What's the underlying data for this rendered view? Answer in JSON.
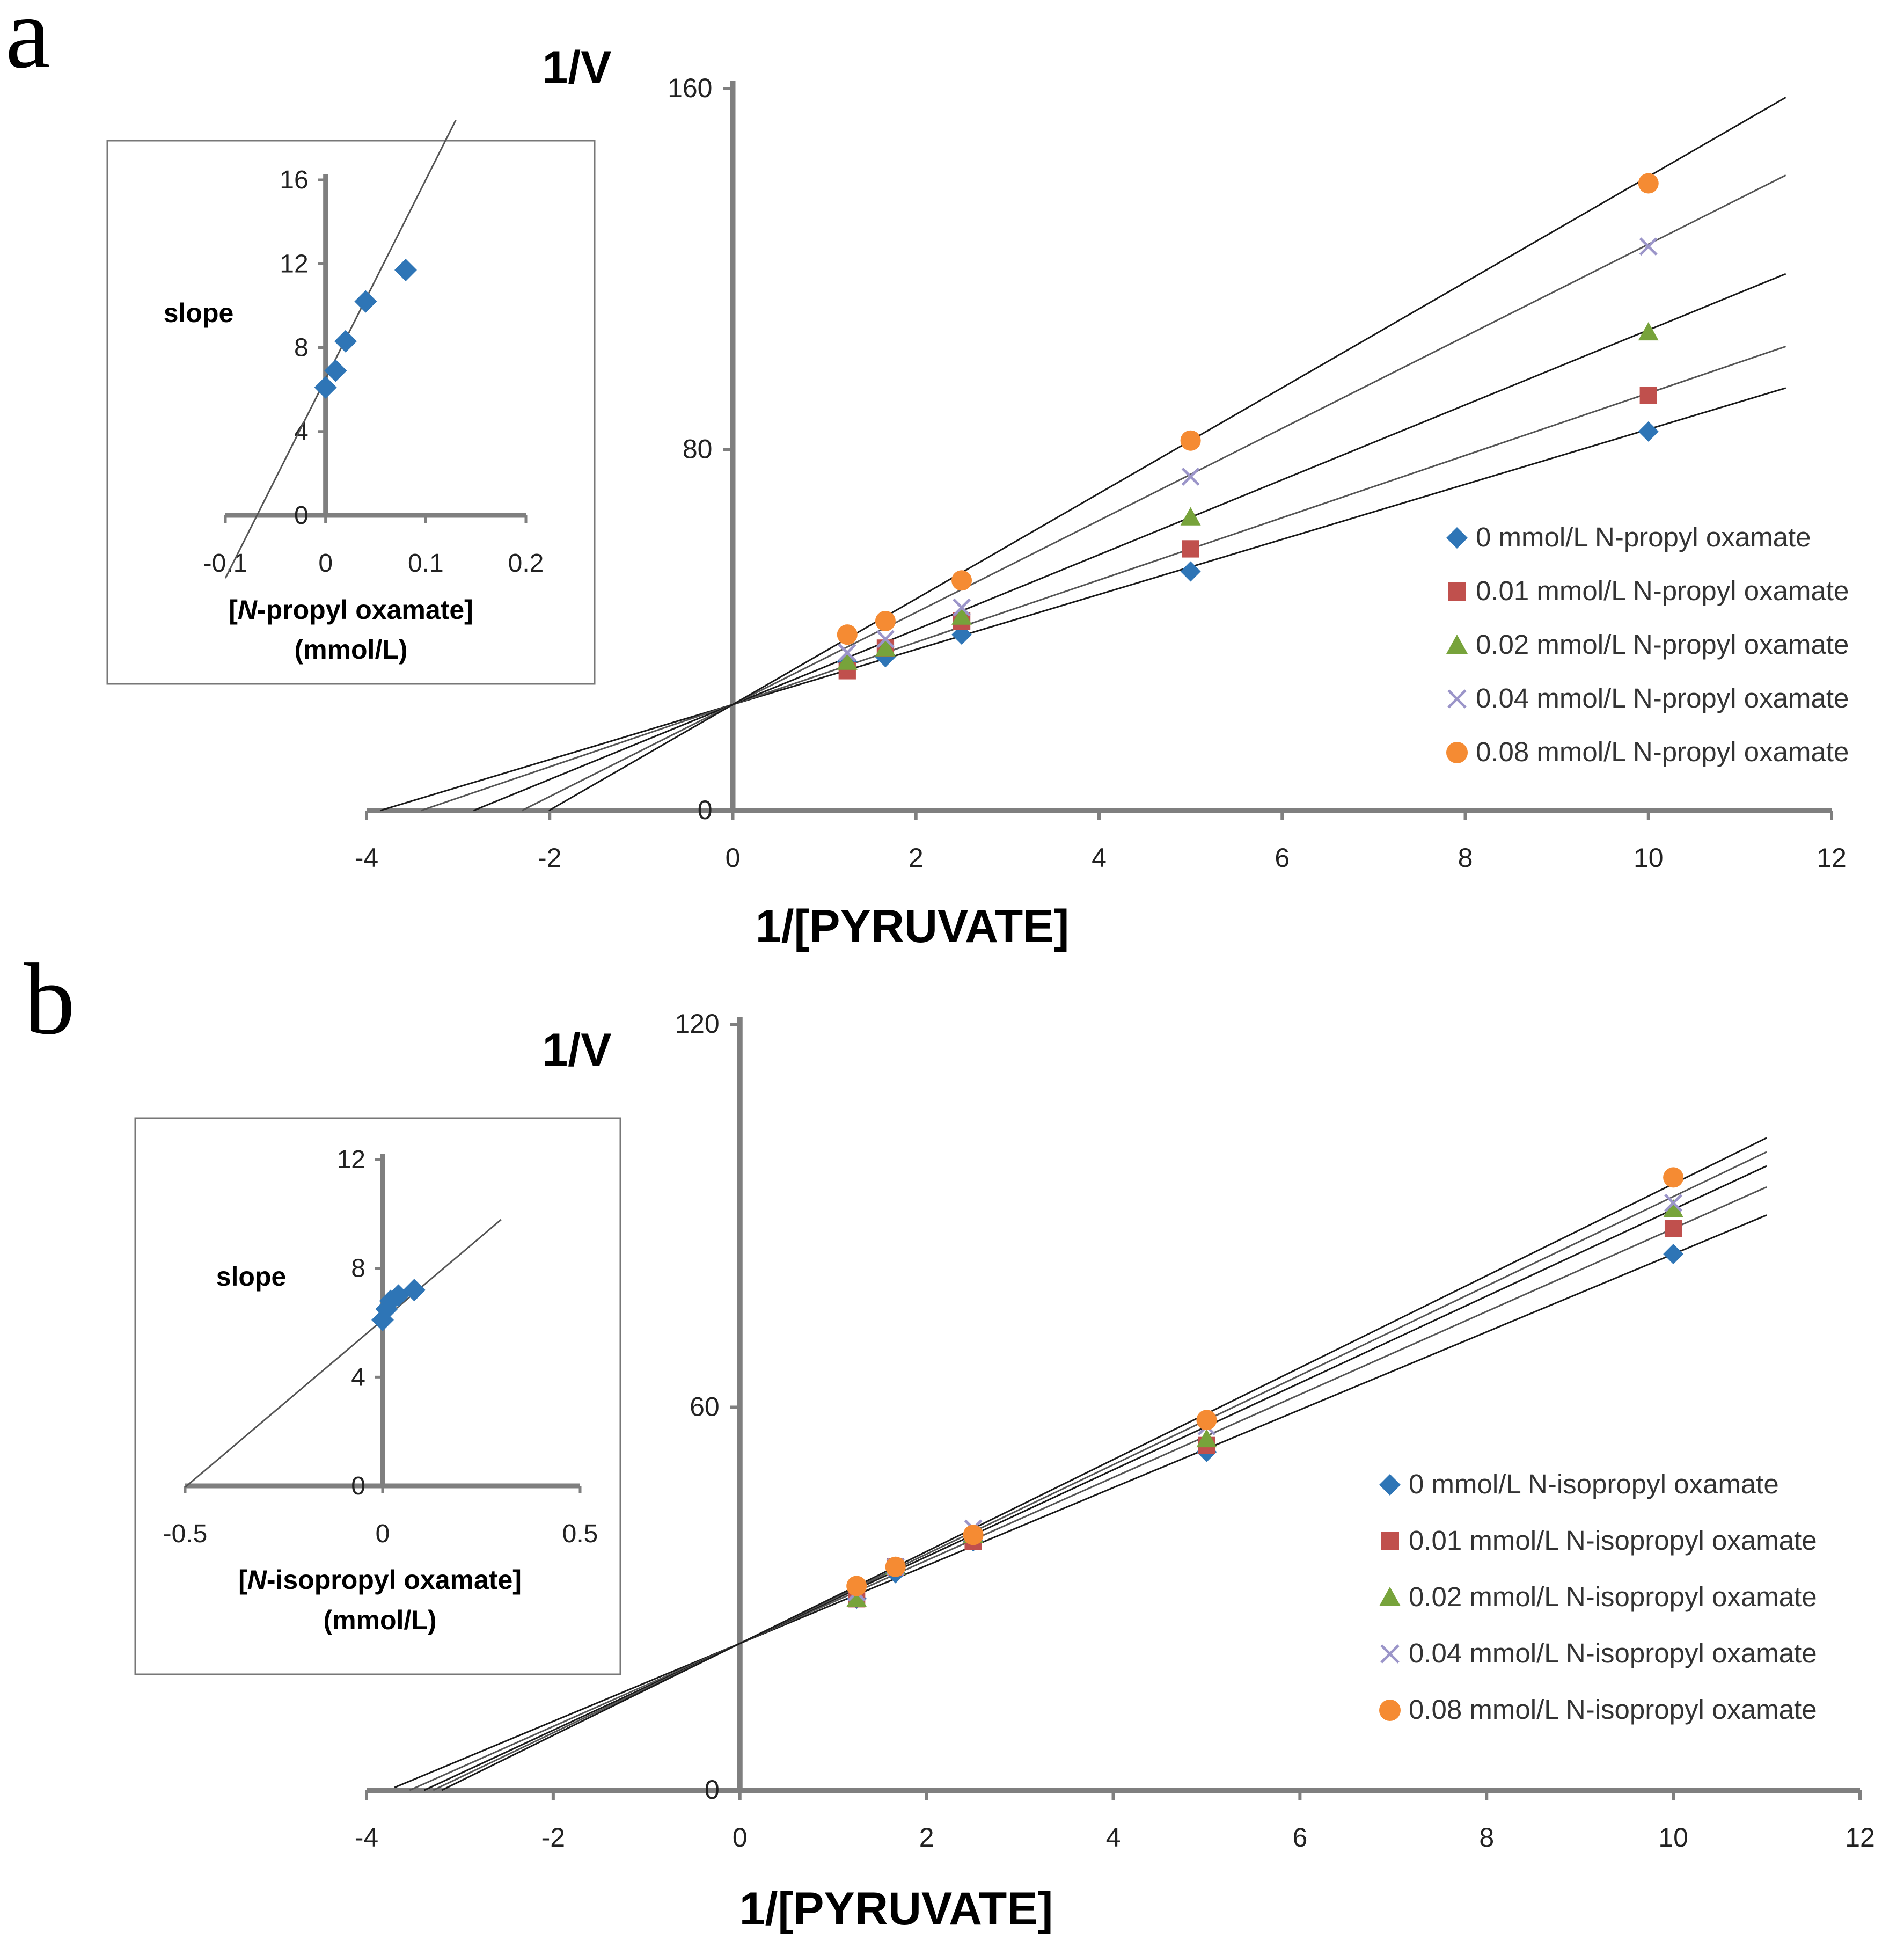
{
  "colors": {
    "axis": "#7f7f7f",
    "fit_line": "#1a1a1a",
    "inset_line": "#555555",
    "s0": "#2e75b6",
    "s1": "#c0504d",
    "s2": "#77a33b",
    "s3": "#9b95c9",
    "s4": "#f58b33"
  },
  "chart_data": [
    {
      "panel_label": "a",
      "type": "line",
      "ylabel": "1/V",
      "xlabel": "1/[PYRUVATE]",
      "xlim": [
        -4,
        12
      ],
      "ylim": [
        0,
        160
      ],
      "x_ticks": [
        "-4",
        "-2",
        "0",
        "2",
        "4",
        "6",
        "8",
        "10",
        "12"
      ],
      "y_ticks": [
        "0",
        "80",
        "160"
      ],
      "x": [
        1.25,
        1.667,
        2.5,
        5,
        10
      ],
      "series": [
        {
          "name": "0 mmol/L N-propyl oxamate",
          "marker": "diamond",
          "values": [
            33,
            34,
            39,
            53,
            84
          ],
          "fit": {
            "slope": 6.1,
            "intercept": 23.5
          }
        },
        {
          "name": "0.01 mmol/L N-propyl oxamate",
          "marker": "square",
          "values": [
            31,
            36,
            42,
            58,
            92
          ],
          "fit": {
            "slope": 6.9,
            "intercept": 23.5
          }
        },
        {
          "name": "0.02 mmol/L N-propyl oxamate",
          "marker": "triangle",
          "values": [
            33,
            36,
            43,
            65,
            106
          ],
          "fit": {
            "slope": 8.3,
            "intercept": 23.5
          }
        },
        {
          "name": "0.04 mmol/L N-propyl oxamate",
          "marker": "cross",
          "values": [
            35,
            38,
            45,
            74,
            125
          ],
          "fit": {
            "slope": 10.2,
            "intercept": 23.5
          }
        },
        {
          "name": "0.08 mmol/L N-propyl oxamate",
          "marker": "circle",
          "values": [
            39,
            42,
            51,
            82,
            139
          ],
          "fit": {
            "slope": 11.7,
            "intercept": 23.5
          }
        }
      ],
      "inset": {
        "ylabel": "slope",
        "xlabel_italic": "N",
        "xlabel_rest": "-propyl oxamate]",
        "xlabel_open": "[",
        "xunit": "(mmol/L)",
        "xlim": [
          -0.1,
          0.2
        ],
        "ylim": [
          0,
          16
        ],
        "x_ticks": [
          "-0.1",
          "0",
          "0.1",
          "0.2"
        ],
        "y_ticks": [
          "0",
          "4",
          "8",
          "12",
          "16"
        ],
        "x": [
          0,
          0.01,
          0.02,
          0.04,
          0.08
        ],
        "values": [
          6.1,
          6.9,
          8.3,
          10.2,
          11.7
        ],
        "fit": {
          "slope": 95,
          "intercept": 6.5
        }
      }
    },
    {
      "panel_label": "b",
      "type": "line",
      "ylabel": "1/V",
      "xlabel": "1/[PYRUVATE]",
      "xlim": [
        -4,
        12
      ],
      "ylim": [
        0,
        120
      ],
      "x_ticks": [
        "-4",
        "-2",
        "0",
        "2",
        "4",
        "6",
        "8",
        "10",
        "12"
      ],
      "y_ticks": [
        "0",
        "60",
        "120"
      ],
      "x": [
        1.25,
        1.667,
        2.5,
        5,
        10
      ],
      "series": [
        {
          "name": "0 mmol/L N-isopropyl oxamate",
          "marker": "diamond",
          "values": [
            30,
            34,
            39,
            53,
            84
          ],
          "fit": {
            "slope": 6.1,
            "intercept": 23
          }
        },
        {
          "name": "0.01 mmol/L N-isopropyl oxamate",
          "marker": "square",
          "values": [
            30,
            35,
            39,
            54,
            88
          ],
          "fit": {
            "slope": 6.5,
            "intercept": 23
          }
        },
        {
          "name": "0.02 mmol/L N-isopropyl oxamate",
          "marker": "triangle",
          "values": [
            30,
            35,
            40,
            55,
            91
          ],
          "fit": {
            "slope": 6.8,
            "intercept": 23
          }
        },
        {
          "name": "0.04 mmol/L N-isopropyl oxamate",
          "marker": "cross",
          "values": [
            31,
            35,
            41,
            57,
            92
          ],
          "fit": {
            "slope": 7.0,
            "intercept": 23
          }
        },
        {
          "name": "0.08 mmol/L N-isopropyl oxamate",
          "marker": "circle",
          "values": [
            32,
            35,
            40,
            58,
            96
          ],
          "fit": {
            "slope": 7.2,
            "intercept": 23
          }
        }
      ],
      "inset": {
        "ylabel": "slope",
        "xlabel_italic": "N",
        "xlabel_rest": "-isopropyl oxamate]",
        "xlabel_open": "[",
        "xunit": "(mmol/L)",
        "xlim": [
          -0.5,
          0.5
        ],
        "ylim": [
          0,
          12
        ],
        "x_ticks": [
          "-0.5",
          "0",
          "0.5"
        ],
        "y_ticks": [
          "0",
          "4",
          "8",
          "12"
        ],
        "x": [
          0,
          0.01,
          0.02,
          0.04,
          0.08
        ],
        "values": [
          6.1,
          6.5,
          6.8,
          7.0,
          7.2
        ],
        "fit": {
          "slope": 12.3,
          "intercept": 6.1
        }
      }
    }
  ]
}
